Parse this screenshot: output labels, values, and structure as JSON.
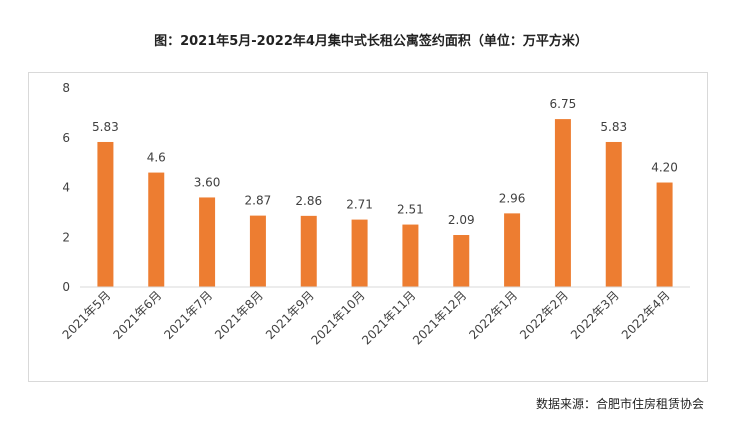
{
  "header": {
    "title": "图：2021年5月-2022年4月集中式长租公寓签约面积（单位：万平方米）"
  },
  "footer": {
    "source": "数据来源：合肥市住房租赁协会"
  },
  "colors": {
    "bar": "#ED7D31",
    "axis": "#d9d9d9",
    "text": "#404040"
  },
  "chart_data": {
    "type": "bar",
    "title": "图：2021年5月-2022年4月集中式长租公寓签约面积（单位：万平方米）",
    "xlabel": "",
    "ylabel": "",
    "ylim": [
      0,
      8
    ],
    "yticks": [
      "0",
      "2",
      "4",
      "6",
      "8"
    ],
    "grid": false,
    "categories": [
      "2021年5月",
      "2021年6月",
      "2021年7月",
      "2021年8月",
      "2021年9月",
      "2021年10月",
      "2021年11月",
      "2021年12月",
      "2022年1月",
      "2022年2月",
      "2022年3月",
      "2022年4月"
    ],
    "values": [
      5.83,
      4.6,
      3.6,
      2.87,
      2.86,
      2.71,
      2.51,
      2.09,
      2.96,
      6.75,
      5.83,
      4.2
    ],
    "labels": [
      "5.83",
      "4.6",
      "3.60",
      "2.87",
      "2.86",
      "2.71",
      "2.51",
      "2.09",
      "2.96",
      "6.75",
      "5.83",
      "4.20"
    ]
  }
}
